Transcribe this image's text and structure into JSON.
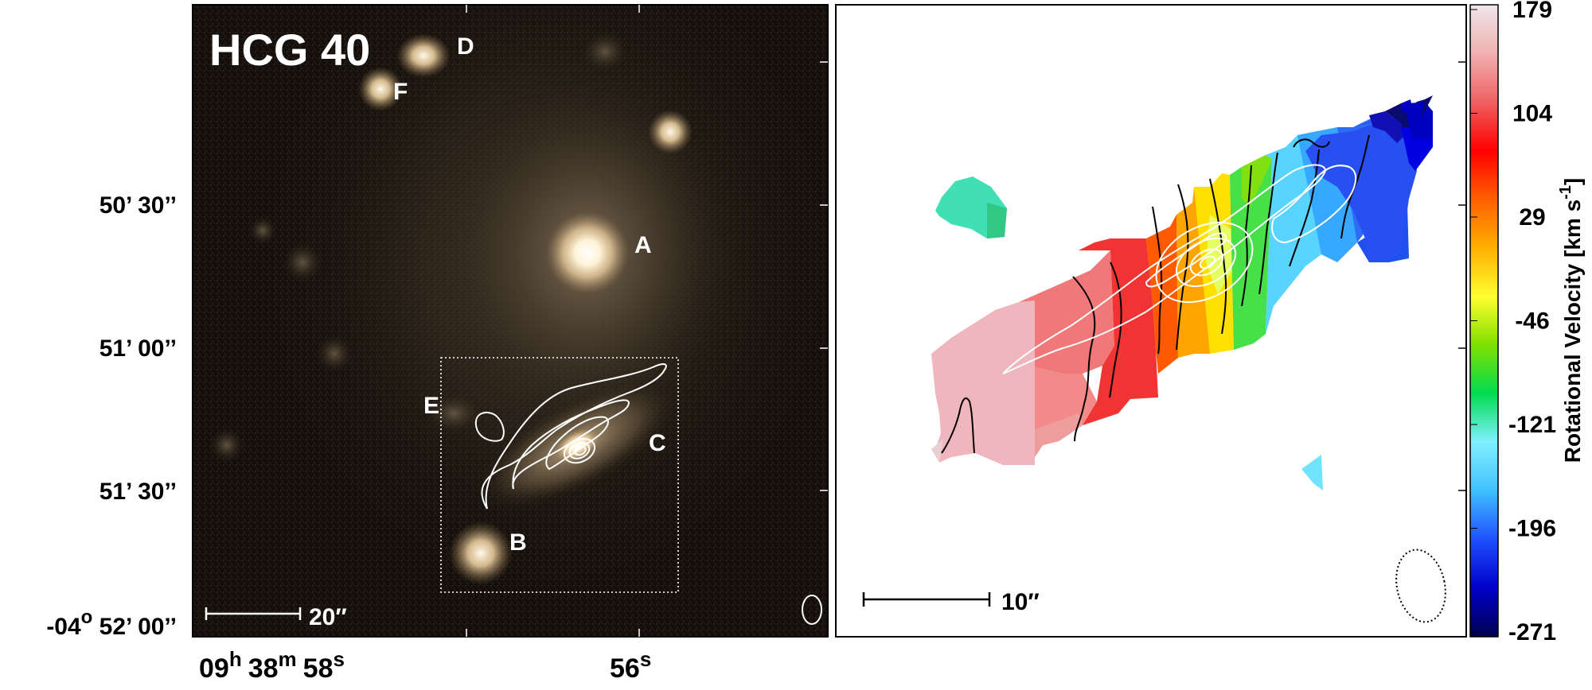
{
  "left_panel": {
    "title": "HCG 40",
    "galaxy_labels": [
      "A",
      "B",
      "C",
      "D",
      "E",
      "F"
    ],
    "scalebar_label": "20″",
    "dec_ticks": [
      {
        "deg": "",
        "sup": "",
        "rest": "50’ 30’’"
      },
      {
        "deg": "",
        "sup": "",
        "rest": "51’ 00’’"
      },
      {
        "deg": "",
        "sup": "",
        "rest": "51’ 30’’"
      },
      {
        "deg": "-04",
        "sup": "o",
        "rest": " 52’ 00’’"
      }
    ],
    "ra_ticks": [
      {
        "h": "09",
        "hsup": "h",
        "m": "38",
        "msup": "m",
        "s": "58",
        "ssup": "s"
      },
      {
        "s": "56",
        "ssup": "s"
      }
    ]
  },
  "right_panel": {
    "scalebar_label": "10″"
  },
  "colorbar": {
    "label": "Rotational Velocity [km s",
    "label_sup": "-1",
    "label_end": "]",
    "ticks": [
      "179",
      "104",
      "29",
      "-46",
      "-121",
      "-196",
      "-271"
    ],
    "vmin": -271,
    "vmax": 179,
    "stops": [
      "#000050",
      "#0000c8",
      "#2050ff",
      "#40c0ff",
      "#80f0ff",
      "#00dc50",
      "#80e000",
      "#ffff30",
      "#ffb000",
      "#ff6000",
      "#ff0000",
      "#f06060",
      "#f0b0b0",
      "#f0e6ea"
    ]
  }
}
